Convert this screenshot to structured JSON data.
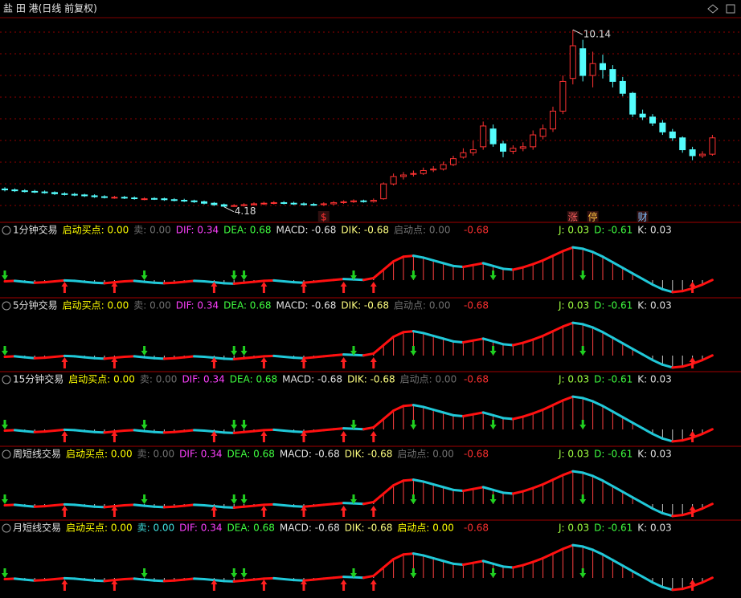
{
  "title": "盐 田 港(日线 前复权)",
  "chart_data": [
    {
      "type": "candlestick",
      "up_color": "#ff3232",
      "down_color": "#54fcfc",
      "ylim": [
        3.9,
        10.6
      ],
      "open": [
        4.78,
        4.75,
        4.72,
        4.7,
        4.68,
        4.66,
        4.62,
        4.6,
        4.58,
        4.55,
        4.52,
        4.48,
        4.5,
        4.48,
        4.44,
        4.46,
        4.45,
        4.42,
        4.4,
        4.38,
        4.35,
        4.3,
        4.25,
        4.2,
        4.22,
        4.25,
        4.28,
        4.3,
        4.32,
        4.3,
        4.28,
        4.26,
        4.25,
        4.28,
        4.32,
        4.35,
        4.38,
        4.36,
        4.45,
        4.95,
        5.2,
        5.28,
        5.3,
        5.42,
        5.45,
        5.6,
        5.85,
        6.0,
        6.2,
        6.8,
        6.3,
        6.05,
        6.15,
        6.2,
        6.55,
        6.8,
        7.4,
        8.5,
        9.5,
        8.6,
        9.0,
        8.8,
        8.4,
        8.0,
        7.3,
        7.2,
        7.0,
        6.7,
        6.5,
        6.1,
        5.9,
        5.95
      ],
      "high": [
        4.84,
        4.8,
        4.77,
        4.75,
        4.73,
        4.7,
        4.67,
        4.65,
        4.62,
        4.6,
        4.57,
        4.55,
        4.55,
        4.53,
        4.5,
        4.5,
        4.49,
        4.47,
        4.45,
        4.42,
        4.39,
        4.34,
        4.29,
        4.27,
        4.3,
        4.33,
        4.35,
        4.37,
        4.37,
        4.35,
        4.33,
        4.31,
        4.33,
        4.37,
        4.4,
        4.43,
        4.42,
        4.46,
        5.0,
        5.3,
        5.35,
        5.4,
        5.5,
        5.55,
        5.7,
        5.9,
        6.15,
        6.4,
        7.05,
        6.95,
        6.4,
        6.25,
        6.35,
        6.75,
        6.95,
        7.55,
        8.6,
        10.14,
        9.8,
        9.4,
        9.3,
        8.95,
        8.55,
        8.05,
        7.45,
        7.3,
        7.1,
        6.8,
        6.55,
        6.2,
        6.05,
        6.6
      ],
      "low": [
        4.7,
        4.68,
        4.66,
        4.64,
        4.62,
        4.58,
        4.56,
        4.54,
        4.51,
        4.48,
        4.46,
        4.45,
        4.44,
        4.42,
        4.4,
        4.41,
        4.38,
        4.36,
        4.34,
        4.31,
        4.26,
        4.21,
        4.18,
        4.18,
        4.19,
        4.22,
        4.24,
        4.26,
        4.26,
        4.24,
        4.22,
        4.21,
        4.21,
        4.24,
        4.28,
        4.31,
        4.32,
        4.32,
        4.42,
        4.9,
        5.1,
        5.2,
        5.25,
        5.35,
        5.4,
        5.55,
        5.8,
        5.9,
        6.1,
        6.2,
        5.85,
        5.95,
        6.05,
        6.1,
        6.45,
        6.7,
        7.3,
        8.3,
        8.4,
        8.2,
        8.5,
        8.2,
        7.9,
        7.2,
        7.1,
        6.9,
        6.6,
        6.4,
        6.0,
        5.75,
        5.82,
        5.9
      ],
      "close": [
        4.75,
        4.72,
        4.7,
        4.68,
        4.66,
        4.62,
        4.6,
        4.58,
        4.55,
        4.52,
        4.5,
        4.5,
        4.48,
        4.46,
        4.45,
        4.45,
        4.42,
        4.4,
        4.38,
        4.35,
        4.3,
        4.25,
        4.2,
        4.22,
        4.25,
        4.28,
        4.3,
        4.32,
        4.3,
        4.28,
        4.26,
        4.25,
        4.28,
        4.32,
        4.35,
        4.38,
        4.36,
        4.4,
        4.95,
        5.2,
        5.25,
        5.3,
        5.4,
        5.45,
        5.6,
        5.8,
        6.0,
        6.1,
        6.9,
        6.3,
        6.05,
        6.15,
        6.2,
        6.6,
        6.8,
        7.4,
        8.4,
        9.6,
        8.6,
        9.0,
        8.8,
        8.4,
        8.0,
        7.3,
        7.2,
        7.0,
        6.7,
        6.5,
        6.1,
        5.9,
        5.95,
        6.5
      ],
      "annotations": [
        {
          "value": 10.14,
          "index": 57
        },
        {
          "value": 4.18,
          "index": 22
        }
      ],
      "events": [
        {
          "text": "$",
          "index": 32,
          "color": "#ff3232"
        },
        {
          "text": "涨",
          "index": 57,
          "color": "#ff6060"
        },
        {
          "text": "停",
          "index": 59,
          "color": "#ffc040"
        },
        {
          "text": "财",
          "index": 64,
          "color": "#80c0ff"
        }
      ]
    },
    {
      "type": "line",
      "rise_color": "#ff1010",
      "fall_color": "#20c8d8",
      "ylim": [
        0,
        100
      ],
      "values": [
        25,
        26,
        24,
        22,
        23,
        25,
        27,
        26,
        24,
        22,
        21,
        23,
        25,
        26,
        24,
        22,
        21,
        22,
        24,
        26,
        25,
        23,
        21,
        20,
        22,
        24,
        26,
        27,
        25,
        23,
        22,
        24,
        26,
        28,
        30,
        29,
        28,
        32,
        50,
        68,
        78,
        80,
        76,
        70,
        64,
        58,
        56,
        60,
        64,
        58,
        52,
        50,
        55,
        62,
        70,
        80,
        90,
        98,
        95,
        88,
        78,
        66,
        54,
        42,
        30,
        18,
        8,
        2,
        4,
        10,
        18,
        28
      ],
      "buy_signals": [
        6,
        11,
        21,
        26,
        30,
        34,
        37,
        69
      ],
      "sell_signals": [
        0,
        14,
        23,
        24,
        35,
        41,
        49,
        58
      ]
    }
  ],
  "panels": [
    {
      "name": "1分钟交易",
      "fields": [
        {
          "text": "启动买点: 0.00",
          "color": "#ffff00"
        },
        {
          "text": "卖: 0.00",
          "color": "#707070"
        },
        {
          "text": "DIF: 0.34",
          "color": "#ff40ff"
        },
        {
          "text": "DEA: 0.68",
          "color": "#40ff40"
        },
        {
          "text": "MACD: -0.68",
          "color": "#e0e0e0"
        },
        {
          "text": "DIK: -0.68",
          "color": "#ffff80"
        },
        {
          "text": "启动点: 0.00",
          "color": "#707070"
        },
        {
          "text": "-0.68",
          "color": "#ff3030"
        },
        {
          "text": "J: 0.03",
          "color": "#a0ff40"
        },
        {
          "text": "D: -0.61",
          "color": "#40ff40"
        },
        {
          "text": "K: 0.03",
          "color": "#e0e0e0"
        }
      ]
    },
    {
      "name": "5分钟交易",
      "fields": [
        {
          "text": "启动买点: 0.00",
          "color": "#ffff00"
        },
        {
          "text": "卖: 0.00",
          "color": "#707070"
        },
        {
          "text": "DIF: 0.34",
          "color": "#ff40ff"
        },
        {
          "text": "DEA: 0.68",
          "color": "#40ff40"
        },
        {
          "text": "MACD: -0.68",
          "color": "#e0e0e0"
        },
        {
          "text": "DIK: -0.68",
          "color": "#ffff80"
        },
        {
          "text": "启动点: 0.00",
          "color": "#707070"
        },
        {
          "text": "-0.68",
          "color": "#ff3030"
        },
        {
          "text": "J: 0.03",
          "color": "#a0ff40"
        },
        {
          "text": "D: -0.61",
          "color": "#40ff40"
        },
        {
          "text": "K: 0.03",
          "color": "#e0e0e0"
        }
      ]
    },
    {
      "name": "15分钟交易",
      "fields": [
        {
          "text": "启动买点: 0.00",
          "color": "#ffff00"
        },
        {
          "text": "卖: 0.00",
          "color": "#707070"
        },
        {
          "text": "DIF: 0.34",
          "color": "#ff40ff"
        },
        {
          "text": "DEA: 0.68",
          "color": "#40ff40"
        },
        {
          "text": "MACD: -0.68",
          "color": "#e0e0e0"
        },
        {
          "text": "DIK: -0.68",
          "color": "#ffff80"
        },
        {
          "text": "启动点: 0.00",
          "color": "#707070"
        },
        {
          "text": "-0.68",
          "color": "#ff3030"
        },
        {
          "text": "J: 0.03",
          "color": "#a0ff40"
        },
        {
          "text": "D: -0.61",
          "color": "#40ff40"
        },
        {
          "text": "K: 0.03",
          "color": "#e0e0e0"
        }
      ]
    },
    {
      "name": "周短线交易",
      "fields": [
        {
          "text": "启动买点: 0.00",
          "color": "#ffff00"
        },
        {
          "text": "卖: 0.00",
          "color": "#707070"
        },
        {
          "text": "DIF: 0.34",
          "color": "#ff40ff"
        },
        {
          "text": "DEA: 0.68",
          "color": "#40ff40"
        },
        {
          "text": "MACD: -0.68",
          "color": "#e0e0e0"
        },
        {
          "text": "DIK: -0.68",
          "color": "#ffff80"
        },
        {
          "text": "启动点: 0.00",
          "color": "#707070"
        },
        {
          "text": "-0.68",
          "color": "#ff3030"
        },
        {
          "text": "J: 0.03",
          "color": "#a0ff40"
        },
        {
          "text": "D: -0.61",
          "color": "#40ff40"
        },
        {
          "text": "K: 0.03",
          "color": "#e0e0e0"
        }
      ]
    },
    {
      "name": "月短线交易",
      "fields": [
        {
          "text": "启动买点: 0.00",
          "color": "#ffff00"
        },
        {
          "text": "卖: 0.00",
          "color": "#40e0e0"
        },
        {
          "text": "DIF: 0.34",
          "color": "#ff40ff"
        },
        {
          "text": "DEA: 0.68",
          "color": "#40ff40"
        },
        {
          "text": "MACD: -0.68",
          "color": "#e0e0e0"
        },
        {
          "text": "DIK: -0.68",
          "color": "#ffff80"
        },
        {
          "text": "启动点: 0.00",
          "color": "#ffff00"
        },
        {
          "text": "-0.68",
          "color": "#ff3030"
        },
        {
          "text": "J: 0.03",
          "color": "#a0ff40"
        },
        {
          "text": "D: -0.61",
          "color": "#40ff40"
        },
        {
          "text": "K: 0.03",
          "color": "#e0e0e0"
        }
      ]
    }
  ]
}
